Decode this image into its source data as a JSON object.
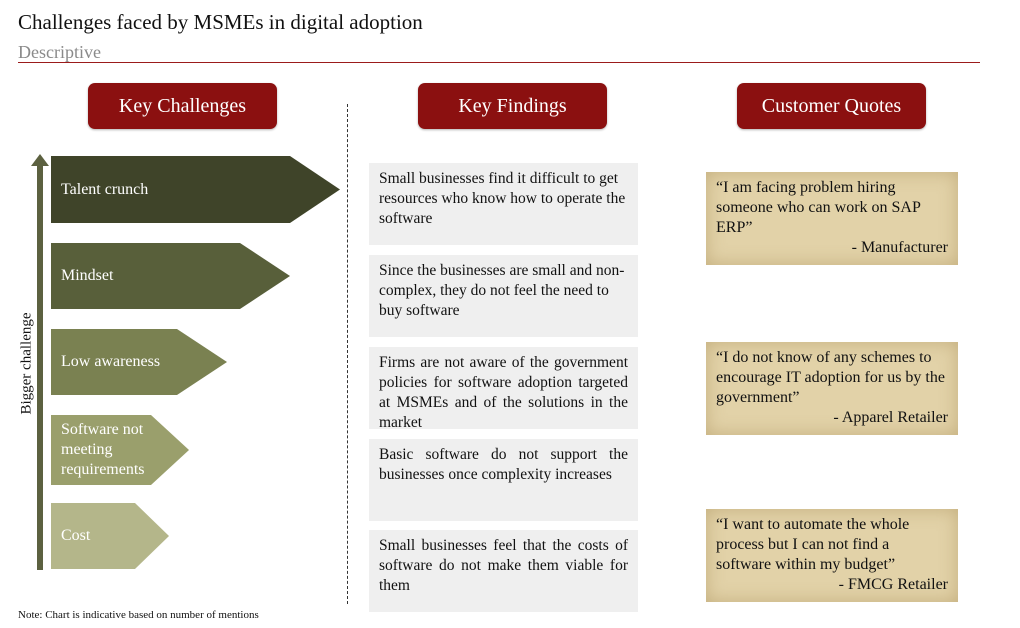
{
  "header": {
    "title": "Challenges faced by MSMEs in digital adoption",
    "subtitle": "Descriptive"
  },
  "columns": {
    "challenges": "Key Challenges",
    "findings": "Key Findings",
    "quotes": "Customer Quotes"
  },
  "axis_label": "Bigger challenge",
  "challenges": [
    {
      "label": "Talent crunch",
      "color": "#3f4429"
    },
    {
      "label": "Mindset",
      "color": "#585f3a"
    },
    {
      "label": "Low awareness",
      "color": "#7a8151"
    },
    {
      "label": "Software not meeting requirements",
      "color": "#9a9f6c"
    },
    {
      "label": "Cost",
      "color": "#b4b68a"
    }
  ],
  "findings": [
    "Small businesses find it difficult to get resources who know how to operate the software",
    "Since the businesses are small and non-complex, they do not feel the need to buy software",
    "Firms are not aware of the government policies for software adoption targeted at MSMEs and of the solutions in the market",
    "Basic software do not support the businesses once complexity increases",
    "Small businesses feel that the costs of software do not make them viable for them"
  ],
  "quotes": [
    {
      "text": "“I am facing problem hiring someone who can work on SAP ERP”",
      "source": "- Manufacturer"
    },
    {
      "text": "“I do not know of any schemes to encourage IT adoption for us by the government”",
      "source": "- Apparel Retailer"
    },
    {
      "text": "“I want to automate the whole process but I can not find a software within my budget”",
      "source": "- FMCG Retailer"
    }
  ],
  "note": "Note: Chart is indicative based on number of mentions"
}
